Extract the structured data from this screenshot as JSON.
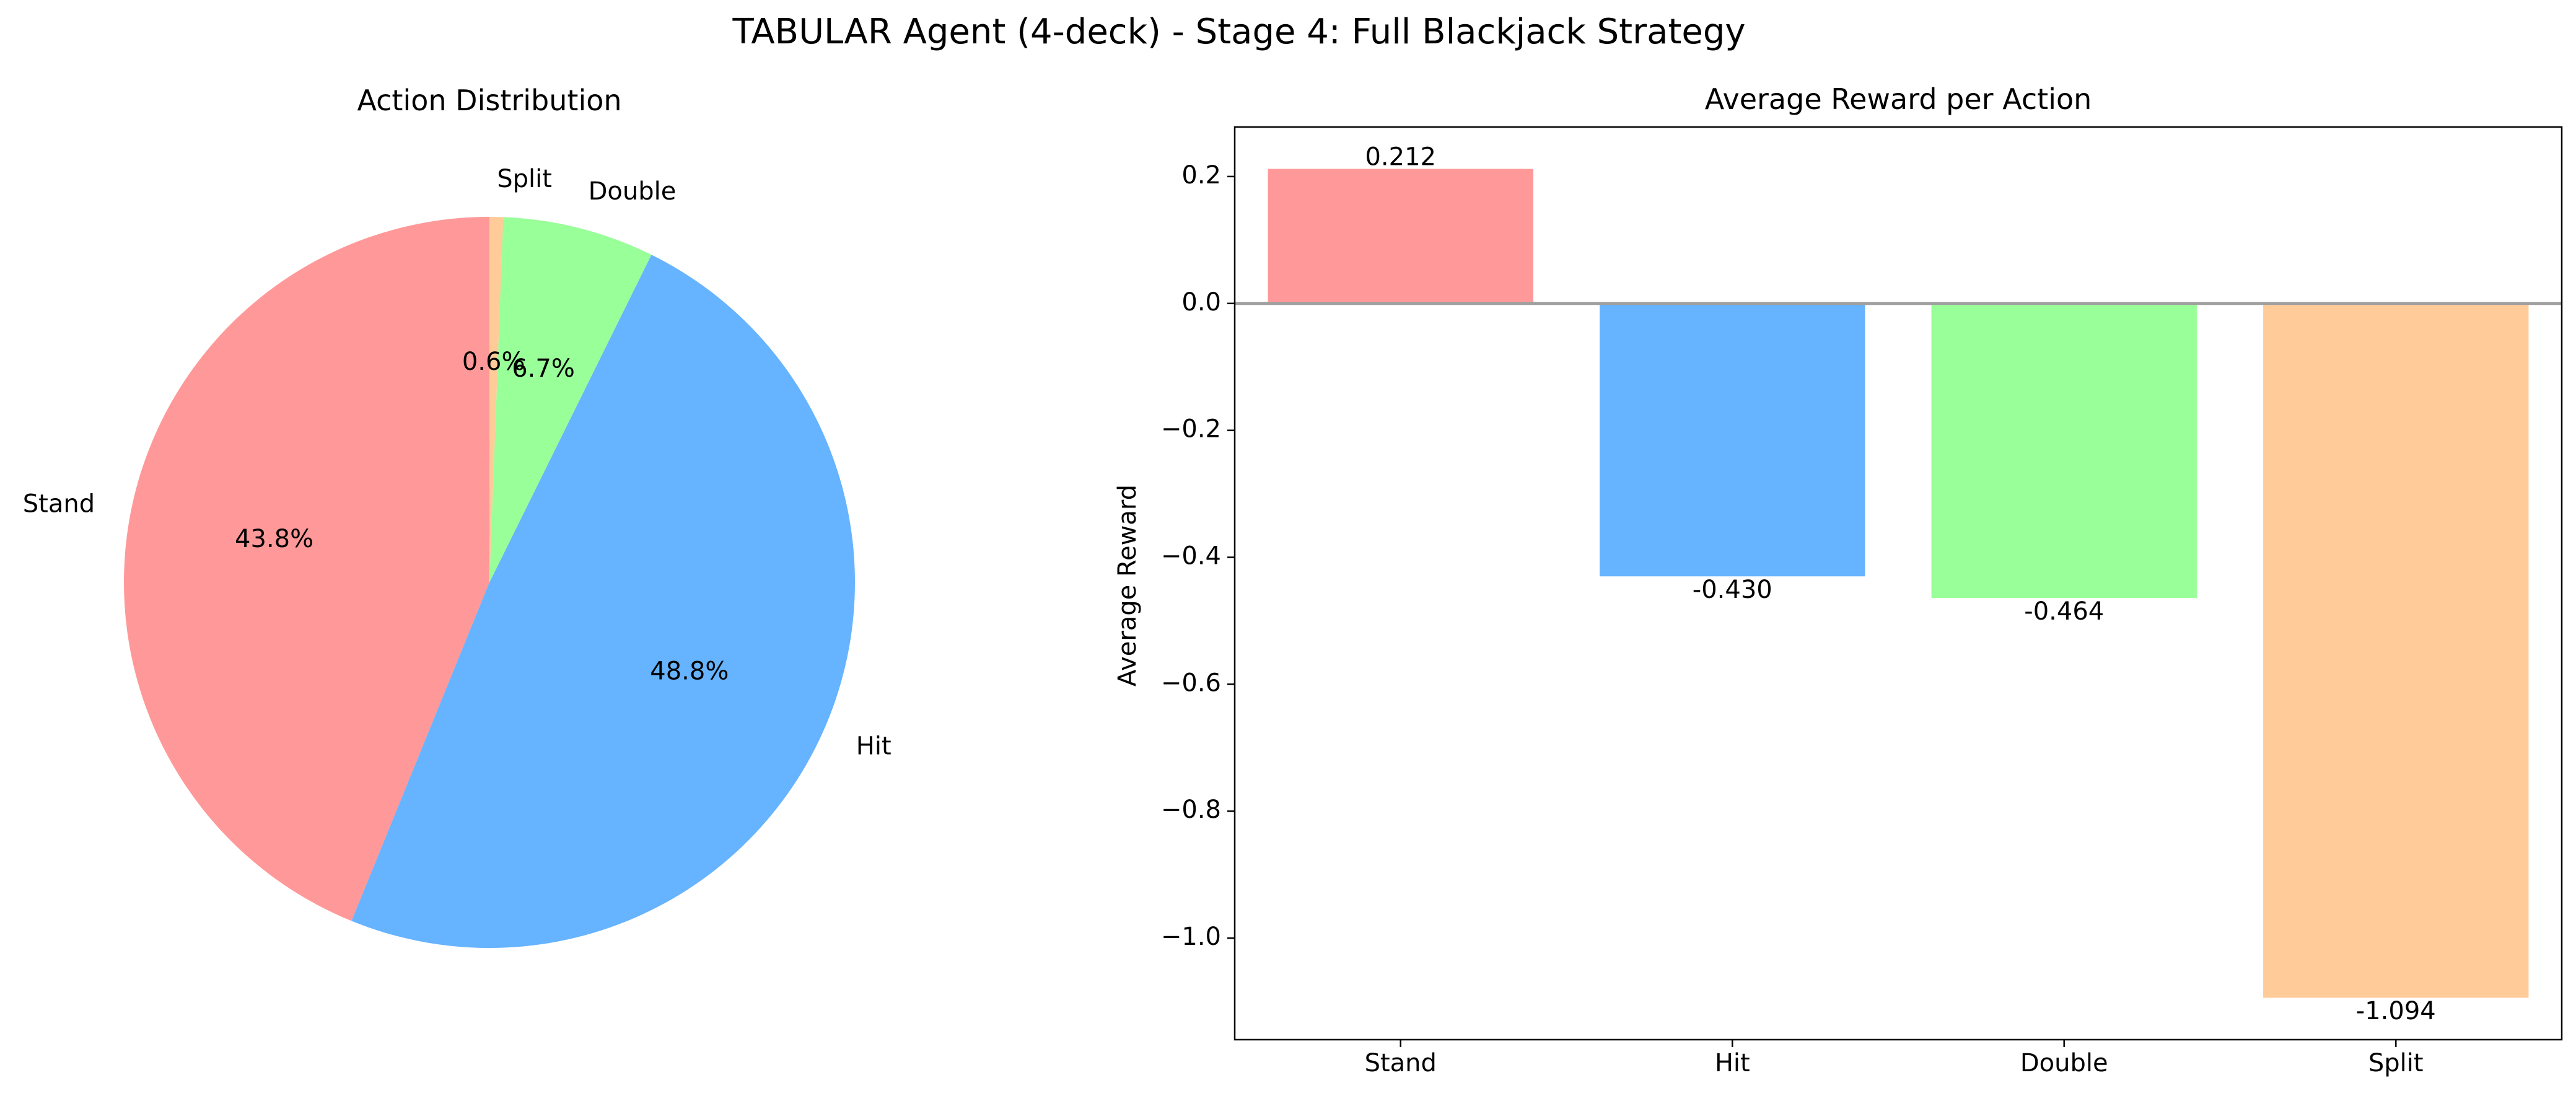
{
  "figure": {
    "title": "TABULAR Agent (4-deck) - Stage 4: Full Blackjack Strategy"
  },
  "chart_data": [
    {
      "type": "pie",
      "title": "Action Distribution",
      "labels": [
        "Stand",
        "Hit",
        "Double",
        "Split"
      ],
      "values": [
        43.8,
        48.8,
        6.7,
        0.6
      ],
      "value_labels": [
        "43.8%",
        "48.8%",
        "6.7%",
        "0.6%"
      ],
      "colors": [
        "#ff9999",
        "#66b3ff",
        "#99ff99",
        "#ffcc99"
      ],
      "start_angle_deg": 90,
      "direction": "counterclockwise"
    },
    {
      "type": "bar",
      "title": "Average Reward per Action",
      "categories": [
        "Stand",
        "Hit",
        "Double",
        "Split"
      ],
      "values": [
        0.212,
        -0.43,
        -0.464,
        -1.094
      ],
      "value_labels": [
        "0.212",
        "-0.430",
        "-0.464",
        "-1.094"
      ],
      "colors": [
        "#ff9999",
        "#66b3ff",
        "#99ff99",
        "#ffcc99"
      ],
      "xlabel": "",
      "ylabel": "Average Reward",
      "ylim": [
        -1.16,
        0.278
      ],
      "yticks": [
        0.2,
        0.0,
        -0.2,
        -0.4,
        -0.6,
        -0.8,
        -1.0
      ],
      "ytick_labels": [
        "0.2",
        "0.0",
        "−0.2",
        "−0.4",
        "−0.6",
        "−0.8",
        "−1.0"
      ],
      "zero_line": true,
      "zero_line_color": "#a0a0a0",
      "grid": false
    }
  ]
}
